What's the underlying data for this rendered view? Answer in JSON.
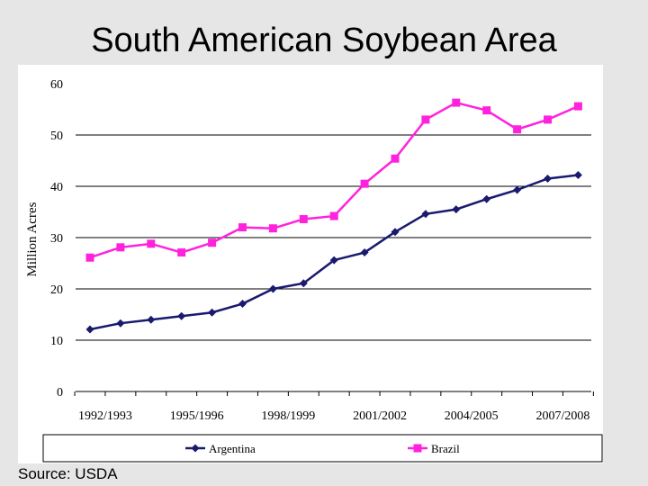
{
  "slide": {
    "title": "South American Soybean Area",
    "source": "Source:  USDA"
  },
  "chart_data": {
    "type": "line",
    "title": "",
    "xlabel": "",
    "ylabel": "Million Acres",
    "ylim": [
      0,
      60
    ],
    "yticks": [
      0,
      10,
      20,
      30,
      40,
      50,
      60
    ],
    "grid": "horizontal",
    "legend_position": "bottom",
    "x": [
      "1992/1993",
      "1993/1994",
      "1994/1995",
      "1995/1996",
      "1996/1997",
      "1997/1998",
      "1998/1999",
      "1999/2000",
      "2000/2001",
      "2001/2002",
      "2002/2003",
      "2003/2004",
      "2004/2005",
      "2005/2006",
      "2006/2007",
      "2007/2008",
      "2008/2009"
    ],
    "x_tick_labels": [
      "1992/1993",
      "1995/1996",
      "1998/1999",
      "2001/2002",
      "2004/2005",
      "2007/2008"
    ],
    "series": [
      {
        "name": "Argentina",
        "color": "#1a1a6e",
        "marker": "diamond",
        "values": [
          12.1,
          13.3,
          14.0,
          14.7,
          15.4,
          17.1,
          20.0,
          21.1,
          25.6,
          27.1,
          31.1,
          34.6,
          35.5,
          37.5,
          39.3,
          41.5,
          42.2
        ]
      },
      {
        "name": "Brazil",
        "color": "#ff22dd",
        "marker": "square",
        "values": [
          26.1,
          28.1,
          28.8,
          27.1,
          29.0,
          32.0,
          31.8,
          33.6,
          34.2,
          40.5,
          45.4,
          53.0,
          56.3,
          54.8,
          51.1,
          53.0,
          55.6
        ]
      }
    ]
  }
}
